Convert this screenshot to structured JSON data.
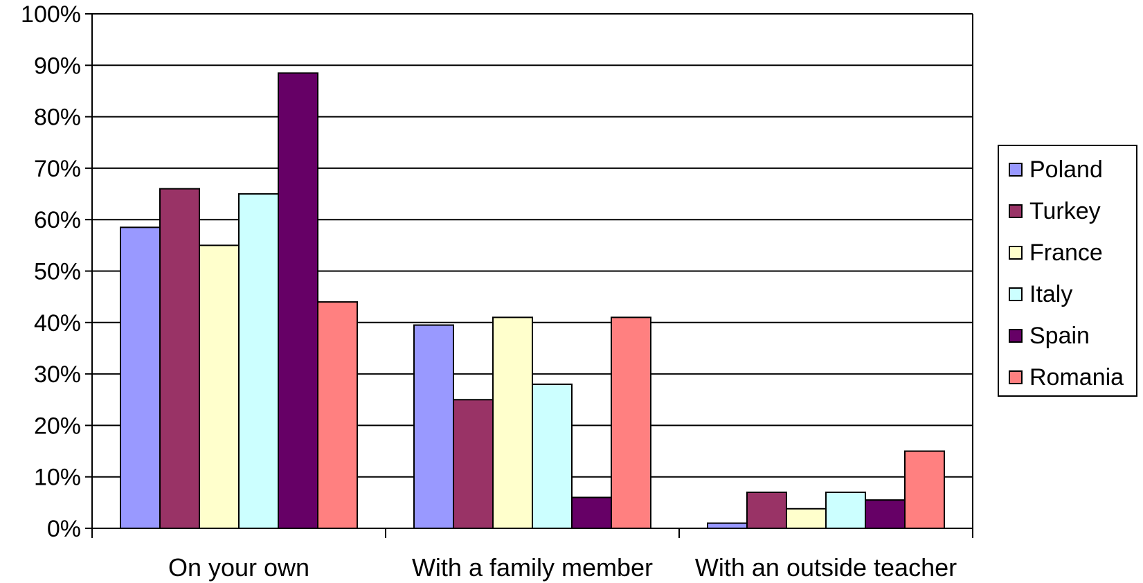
{
  "chart_data": {
    "type": "bar",
    "categories": [
      "On your own",
      "With a family member",
      "With an outside teacher"
    ],
    "series": [
      {
        "name": "Poland",
        "color": "#9999FF",
        "values": [
          58.5,
          39.5,
          1.0
        ]
      },
      {
        "name": "Turkey",
        "color": "#993366",
        "values": [
          66.0,
          25.0,
          7.0
        ]
      },
      {
        "name": "France",
        "color": "#FFFFCC",
        "values": [
          55.0,
          41.0,
          3.8
        ]
      },
      {
        "name": "Italy",
        "color": "#CCFFFF",
        "values": [
          65.0,
          28.0,
          7.0
        ]
      },
      {
        "name": "Spain",
        "color": "#660066",
        "values": [
          88.5,
          6.0,
          5.5
        ]
      },
      {
        "name": "Romania",
        "color": "#FF8080",
        "values": [
          44.0,
          41.0,
          15.0
        ]
      }
    ],
    "ylim": [
      0,
      100
    ],
    "yticks": [
      "0%",
      "10%",
      "20%",
      "30%",
      "40%",
      "50%",
      "60%",
      "70%",
      "80%",
      "90%",
      "100%"
    ],
    "grid": true,
    "legend_position": "right"
  }
}
